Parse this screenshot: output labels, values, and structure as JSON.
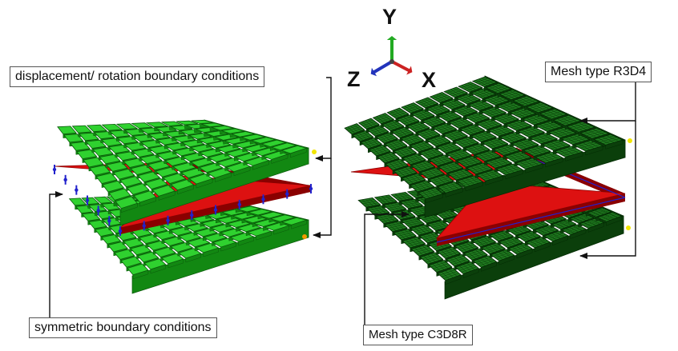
{
  "labels": {
    "displacement": "displacement/ rotation boundary conditions",
    "symmetric": "symmetric  boundary conditions",
    "r3d4": "Mesh type R3D4",
    "c3d8r": "Mesh type C3D8R"
  },
  "axes": {
    "y": "Y",
    "z": "Z",
    "x": "X"
  },
  "colors": {
    "block_light": "#2fd12f",
    "block_light_dark": "#128812",
    "block_mesh": "#1f7a1f",
    "block_mesh_dark": "#0b3f0b",
    "plate": "#dd1111",
    "plate_dark": "#8a0000",
    "bc_markers": "#2222cc",
    "axis_y": "#22aa22",
    "axis_x": "#cc2222",
    "axis_z": "#2233bb"
  }
}
